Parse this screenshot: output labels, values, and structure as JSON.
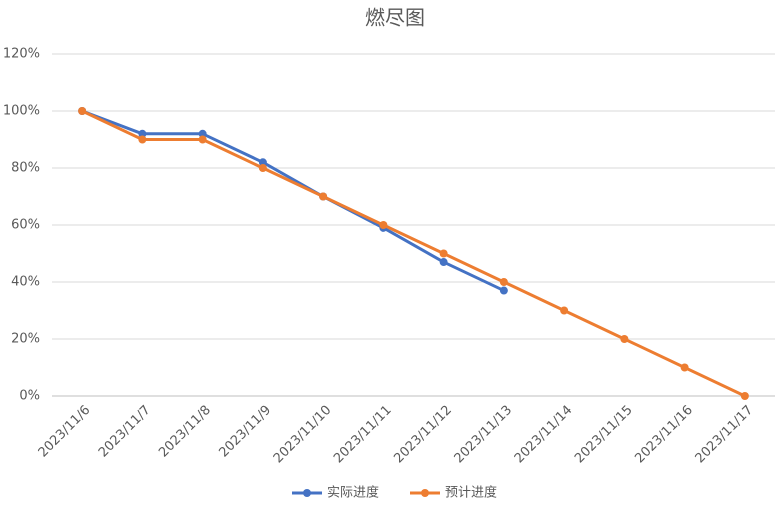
{
  "chart_data": {
    "type": "line",
    "title": "燃尽图",
    "categories": [
      "2023/11/6",
      "2023/11/7",
      "2023/11/8",
      "2023/11/9",
      "2023/11/10",
      "2023/11/11",
      "2023/11/12",
      "2023/11/13",
      "2023/11/14",
      "2023/11/15",
      "2023/11/16",
      "2023/11/17"
    ],
    "series": [
      {
        "name": "实际进度",
        "color": "#4472c4",
        "values": [
          100,
          92,
          92,
          82,
          70,
          59,
          47,
          37,
          null,
          null,
          null,
          null
        ]
      },
      {
        "name": "预计进度",
        "color": "#ed7d31",
        "values": [
          100,
          90,
          90,
          80,
          70,
          60,
          50,
          40,
          30,
          20,
          10,
          0
        ]
      }
    ],
    "ylim": [
      0,
      120
    ],
    "yticks": [
      {
        "value": 0,
        "label": "0%"
      },
      {
        "value": 20,
        "label": "20%"
      },
      {
        "value": 40,
        "label": "40%"
      },
      {
        "value": 60,
        "label": "60%"
      },
      {
        "value": 80,
        "label": "80%"
      },
      {
        "value": 100,
        "label": "100%"
      },
      {
        "value": 120,
        "label": "120%"
      }
    ],
    "grid": true,
    "legend": "bottom"
  }
}
